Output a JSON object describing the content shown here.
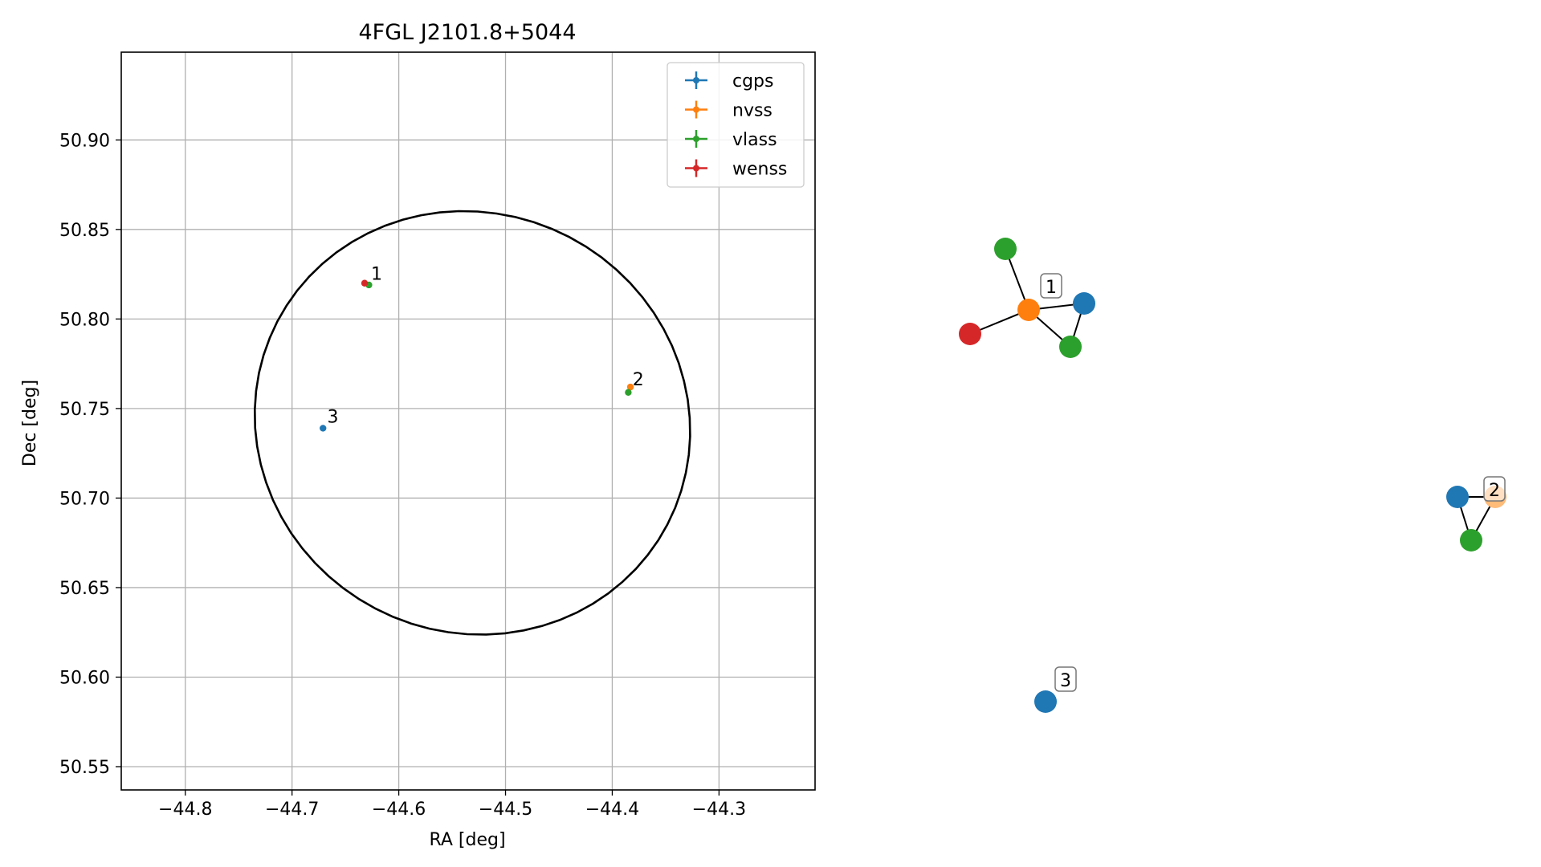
{
  "chart_data": [
    {
      "type": "scatter",
      "title": "4FGL J2101.8+5044",
      "xlabel": "RA [deg]",
      "ylabel": "Dec [deg]",
      "xlim": [
        -44.86,
        -44.21
      ],
      "ylim": [
        50.537,
        50.949
      ],
      "xticks": [
        -44.8,
        -44.7,
        -44.6,
        -44.5,
        -44.4,
        -44.3
      ],
      "xtick_labels": [
        "−44.8",
        "−44.7",
        "−44.6",
        "−44.5",
        "−44.4",
        "−44.3"
      ],
      "yticks": [
        50.55,
        50.6,
        50.65,
        50.7,
        50.75,
        50.8,
        50.85,
        50.9
      ],
      "ytick_labels": [
        "50.55",
        "50.60",
        "50.65",
        "50.70",
        "50.75",
        "50.80",
        "50.85",
        "50.90"
      ],
      "grid": true,
      "legend_position": "top-right",
      "series": [
        {
          "name": "cgps",
          "color": "#1f77b4",
          "points": [
            {
              "x": -44.671,
              "y": 50.739
            }
          ]
        },
        {
          "name": "nvss",
          "color": "#ff7f0e",
          "points": [
            {
              "x": -44.383,
              "y": 50.762
            }
          ]
        },
        {
          "name": "vlass",
          "color": "#2ca02c",
          "points": [
            {
              "x": -44.628,
              "y": 50.819
            },
            {
              "x": -44.385,
              "y": 50.759
            }
          ]
        },
        {
          "name": "wenss",
          "color": "#d62728",
          "points": [
            {
              "x": -44.632,
              "y": 50.82
            }
          ]
        }
      ],
      "annotations": [
        {
          "text": "1",
          "x": -44.626,
          "y": 50.822
        },
        {
          "text": "2",
          "x": -44.381,
          "y": 50.763
        },
        {
          "text": "3",
          "x": -44.667,
          "y": 50.742
        }
      ],
      "ellipse": {
        "center": [
          -44.531,
          50.742
        ],
        "x_semi_axis": 0.206,
        "y_semi_axis": 0.117,
        "angle_deg": 27.5,
        "color": "#000000"
      }
    },
    {
      "type": "network",
      "node_colors": {
        "cgps": "#1f77b4",
        "nvss": "#ff7f0e",
        "vlass": "#2ca02c",
        "wenss": "#d62728",
        "nvss_light": "#ffbb78"
      },
      "labels": [
        {
          "text": "1"
        },
        {
          "text": "2"
        },
        {
          "text": "3"
        }
      ]
    }
  ]
}
